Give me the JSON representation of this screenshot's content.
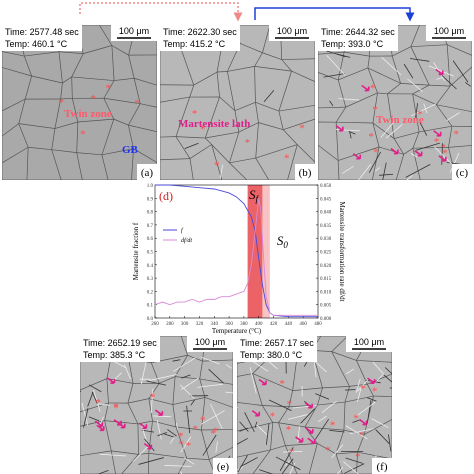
{
  "panels": [
    {
      "label": "(a)",
      "time": "Time: 2577.48 sec",
      "temp": "Temp: 460.1 °C",
      "scale_bar": "100 μm",
      "annotations": [
        "Twin zone",
        "GB"
      ]
    },
    {
      "label": "(b)",
      "time": "Time: 2622.30 sec",
      "temp": "Temp: 415.2 °C",
      "scale_bar": "100 μm",
      "annotations": [
        "Martensite lath"
      ]
    },
    {
      "label": "(c)",
      "time": "Time: 2644.32 sec",
      "temp": "Temp: 393.0 °C",
      "scale_bar": "100 μm",
      "annotations": [
        "Twin zone"
      ]
    },
    {
      "label": "(e)",
      "time": "Time: 2652.19 sec",
      "temp": "Temp: 385.3 °C",
      "scale_bar": "100 μm",
      "annotations": []
    },
    {
      "label": "(f)",
      "time": "Time: 2657.17 sec",
      "temp": "Temp: 380.0 °C",
      "scale_bar": "100 μm",
      "annotations": []
    }
  ],
  "chart_data": {
    "type": "line",
    "label": "(d)",
    "x_label": "Temperature (°C)",
    "y_label": "Martensite fraction f",
    "y2_label": "Martensite transformation rate df/dt",
    "annotations": [
      {
        "text": "S",
        "subscript": "f"
      },
      {
        "text": "S",
        "subscript": "0"
      }
    ],
    "bands": [
      {
        "range": [
          385,
          405
        ],
        "color": "#e8464c"
      },
      {
        "range": [
          405,
          415
        ],
        "color": "#f6b8ba"
      }
    ],
    "legend": "left",
    "xlim": [
      260,
      480
    ],
    "xticks": [
      260,
      280,
      300,
      320,
      340,
      360,
      380,
      400,
      420,
      440,
      460,
      480
    ],
    "ylim": [
      0,
      1
    ],
    "yticks": [
      {
        "value": 0,
        "label": "0.0"
      },
      0.1,
      0.2,
      0.3,
      0.4,
      0.5,
      0.6,
      0.7,
      0.8,
      0.9,
      {
        "value": 1,
        "label": "1.0"
      }
    ],
    "y2lim": [
      0,
      0.05
    ],
    "y2ticks": [
      {
        "value": 0,
        "label": "0.000"
      },
      0.005,
      {
        "value": 0.01,
        "label": "0.010"
      },
      0.015,
      {
        "value": 0.02,
        "label": "0.020"
      },
      0.025,
      {
        "value": 0.03,
        "label": "0.030"
      },
      0.035,
      {
        "value": 0.04,
        "label": "0.040"
      },
      0.045,
      {
        "value": 0.05,
        "label": "0.050"
      }
    ],
    "series": [
      {
        "name": "f",
        "color": "#4a4ad8",
        "x": [
          260,
          280,
          300,
          320,
          340,
          360,
          370,
          380,
          390,
          395,
          400,
          405,
          410,
          415,
          420,
          440,
          460,
          480
        ],
        "values": [
          1,
          1,
          0.99,
          0.98,
          0.97,
          0.94,
          0.91,
          0.86,
          0.76,
          0.66,
          0.45,
          0.25,
          0.1,
          0.04,
          0.02,
          0.01,
          0.01,
          0.01
        ]
      },
      {
        "name": "df/dt",
        "color": "#d98ad8",
        "axis": "y2",
        "x": [
          260,
          270,
          280,
          290,
          300,
          310,
          320,
          330,
          340,
          350,
          360,
          370,
          380,
          385,
          390,
          395,
          400,
          403,
          406,
          410,
          415,
          420,
          440,
          460,
          480
        ],
        "values": [
          0.005,
          0.006,
          0.005,
          0.006,
          0.006,
          0.007,
          0.006,
          0.007,
          0.007,
          0.008,
          0.008,
          0.009,
          0.01,
          0.013,
          0.02,
          0.032,
          0.045,
          0.04,
          0.025,
          0.008,
          0.002,
          0.001,
          0.001,
          0.001,
          0.001
        ]
      }
    ]
  }
}
